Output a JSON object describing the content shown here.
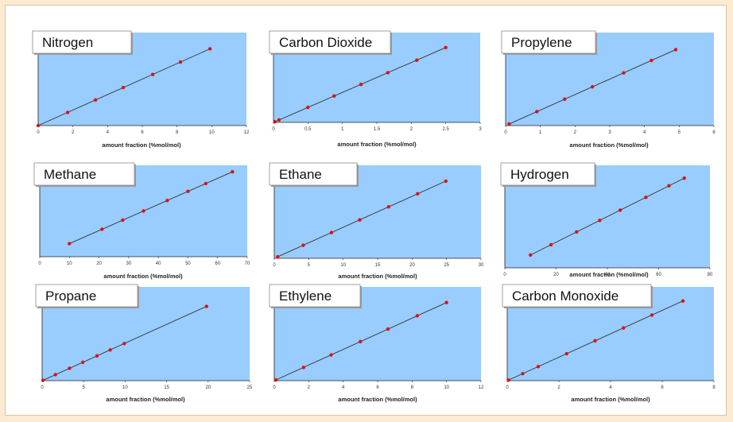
{
  "colors": {
    "plot_bg": "#99ccff",
    "marker": "#dd1111",
    "line": "#333333",
    "page_bg": "#fcebd2"
  },
  "chart_data": [
    {
      "type": "line",
      "title": "Nitrogen",
      "xlabel": "amount fraction (%mol/mol)",
      "xlim": [
        0,
        12
      ],
      "xticks": [
        "0",
        "2",
        "4",
        "6",
        "8",
        "10",
        "12"
      ],
      "x": [
        0,
        1.7,
        3.3,
        4.9,
        6.6,
        8.2,
        9.9
      ],
      "y": [
        0.0,
        1.7,
        3.3,
        4.9,
        6.6,
        8.2,
        9.9
      ]
    },
    {
      "type": "line",
      "title": "Carbon Dioxide",
      "xlabel": "amount fraction (%mol/mol)",
      "xlim": [
        0,
        3
      ],
      "xticks": [
        "0",
        "0.5",
        "1",
        "1.5",
        "2",
        "2.5",
        "3"
      ],
      "x": [
        0.02,
        0.08,
        0.5,
        0.88,
        1.27,
        1.66,
        2.08,
        2.5
      ],
      "y": [
        0.02,
        0.08,
        0.5,
        0.88,
        1.27,
        1.66,
        2.08,
        2.5
      ]
    },
    {
      "type": "line",
      "title": "Propylene",
      "xlabel": "amount fraction (%mol/mol)",
      "xlim": [
        0,
        6
      ],
      "xticks": [
        "0",
        "1",
        "2",
        "3",
        "4",
        "5",
        "6"
      ],
      "x": [
        0.1,
        0.9,
        1.7,
        2.5,
        3.4,
        4.2,
        4.9
      ],
      "y": [
        0.1,
        0.9,
        1.7,
        2.5,
        3.4,
        4.2,
        4.9
      ]
    },
    {
      "type": "line",
      "title": "Methane",
      "xlabel": "amount fraction (%mol/mol)",
      "xlim": [
        0,
        70
      ],
      "xticks": [
        "0",
        "10",
        "20",
        "30",
        "40",
        "50",
        "60",
        "70"
      ],
      "x": [
        10,
        21,
        28,
        35,
        43,
        50,
        56,
        65
      ],
      "y": [
        10,
        21,
        28,
        35,
        43,
        50,
        56,
        65
      ]
    },
    {
      "type": "line",
      "title": "Ethane",
      "xlabel": "amount fraction (%mol/mol)",
      "xlim": [
        0,
        30
      ],
      "xticks": [
        "0",
        "5",
        "10",
        "15",
        "20",
        "25",
        "30"
      ],
      "x": [
        0.5,
        4.2,
        8.3,
        12.4,
        16.6,
        20.8,
        24.9
      ],
      "y": [
        0.5,
        4.2,
        8.3,
        12.4,
        16.6,
        20.8,
        24.9
      ]
    },
    {
      "type": "line",
      "title": "Hydrogen",
      "xlabel": "amount fraction (%mol/mol)",
      "xlim": [
        0,
        80
      ],
      "xticks": [
        "0",
        "20",
        "40",
        "60",
        "80"
      ],
      "x": [
        10,
        18,
        28,
        37,
        45,
        55,
        64,
        70
      ],
      "y": [
        10,
        18,
        28,
        37,
        45,
        55,
        64,
        70
      ]
    },
    {
      "type": "line",
      "title": "Propane",
      "xlabel": "amount fraction (%mol/mol)",
      "xlim": [
        0,
        25
      ],
      "xticks": [
        "0",
        "5",
        "10",
        "15",
        "20",
        "25"
      ],
      "x": [
        0.1,
        1.6,
        3.3,
        4.9,
        6.6,
        8.2,
        9.9,
        19.8
      ],
      "y": [
        0.1,
        1.6,
        3.3,
        4.9,
        6.6,
        8.2,
        9.9,
        19.8
      ]
    },
    {
      "type": "line",
      "title": "Ethylene",
      "xlabel": "amount fraction (%mol/mol)",
      "xlim": [
        0,
        12
      ],
      "xticks": [
        "0",
        "2",
        "4",
        "6",
        "8",
        "10",
        "12"
      ],
      "x": [
        0.1,
        1.7,
        3.3,
        5.0,
        6.6,
        8.3,
        10.0
      ],
      "y": [
        0.1,
        1.7,
        3.3,
        5.0,
        6.6,
        8.3,
        10.0
      ]
    },
    {
      "type": "line",
      "title": "Carbon Monoxide",
      "xlabel": "amount fraction (%mol/mol)",
      "xlim": [
        0,
        8
      ],
      "xticks": [
        "0",
        "2",
        "4",
        "6",
        "8"
      ],
      "x": [
        0.05,
        0.6,
        1.2,
        2.3,
        3.4,
        4.5,
        5.6,
        6.8
      ],
      "y": [
        0.05,
        0.6,
        1.2,
        2.3,
        3.4,
        4.5,
        5.6,
        6.8
      ]
    }
  ]
}
